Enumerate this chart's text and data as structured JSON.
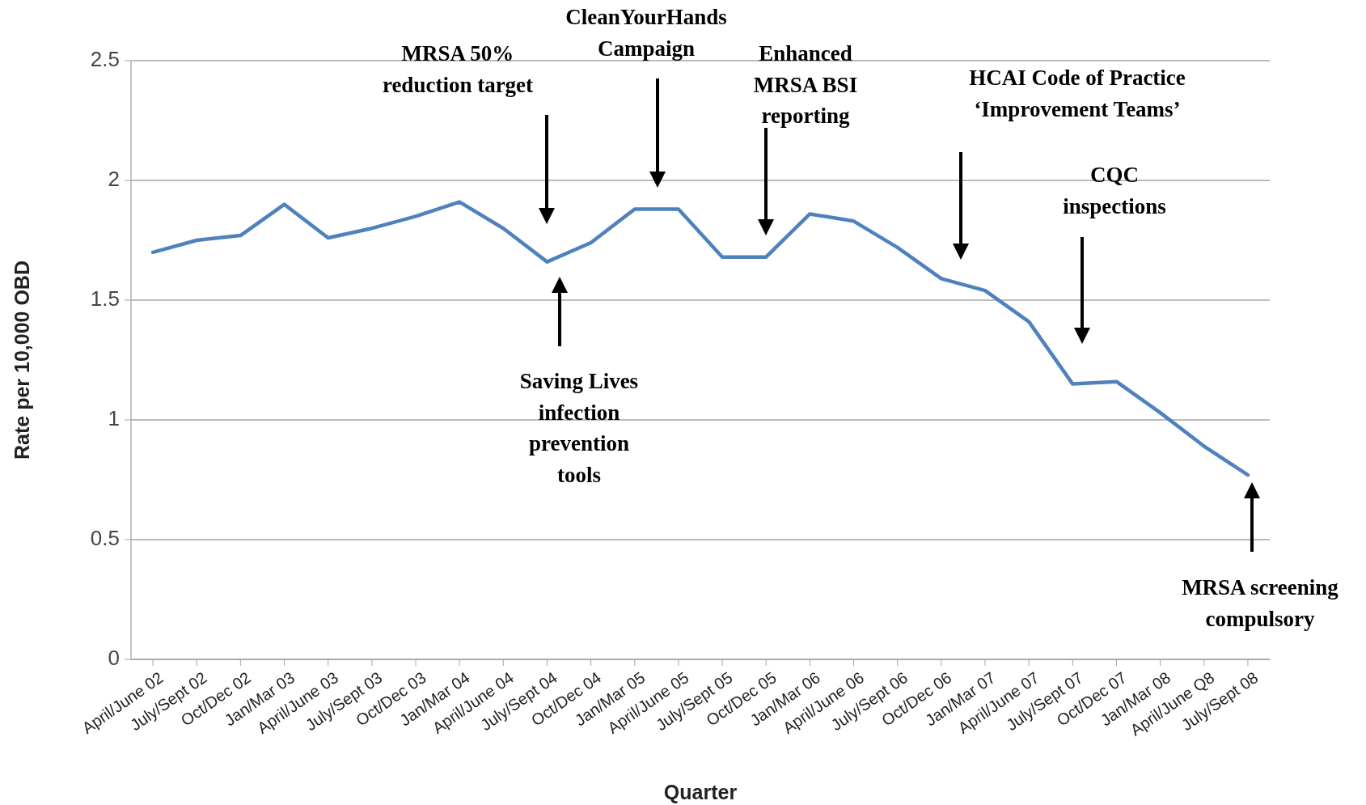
{
  "chart_data": {
    "type": "line",
    "xlabel": "Quarter",
    "ylabel": "Rate per 10,000 OBD",
    "categories": [
      "April/June 02",
      "July/Sept 02",
      "Oct/Dec 02",
      "Jan/Mar 03",
      "April/June 03",
      "July/Sept 03",
      "Oct/Dec 03",
      "Jan/Mar 04",
      "April/June 04",
      "July/Sept 04",
      "Oct/Dec 04",
      "Jan/Mar 05",
      "April/June 05",
      "July/Sept 05",
      "Oct/Dec 05",
      "Jan/Mar 06",
      "April/June 06",
      "July/Sept 06",
      "Oct/Dec 06",
      "Jan/Mar 07",
      "April/June 07",
      "July/Sept 07",
      "Oct/Dec 07",
      "Jan/Mar 08",
      "April/June Q8",
      "July/Sept 08"
    ],
    "series": [
      {
        "color": "#4f81bd",
        "values": [
          1.7,
          1.75,
          1.77,
          1.9,
          1.76,
          1.8,
          1.85,
          1.91,
          1.8,
          1.66,
          1.74,
          1.88,
          1.88,
          1.68,
          1.68,
          1.86,
          1.83,
          1.72,
          1.59,
          1.54,
          1.41,
          1.15,
          1.16,
          1.03,
          0.89,
          0.77
        ]
      }
    ],
    "ylim": [
      0,
      2.5
    ],
    "yticks": [
      0,
      0.5,
      1,
      1.5,
      2,
      2.5
    ],
    "grid": "y",
    "marker": "none",
    "line_style": "solid",
    "annotations": [
      "MRSA 50%\nreduction target",
      "CleanYourHands\nCampaign",
      "Enhanced\nMRSA BSI\nreporting",
      "Saving Lives\ninfection\nprevention\ntools",
      "HCAI Code of Practice\n‘Improvement Teams’",
      "CQC\ninspections",
      "MRSA screening\ncompulsory"
    ]
  }
}
